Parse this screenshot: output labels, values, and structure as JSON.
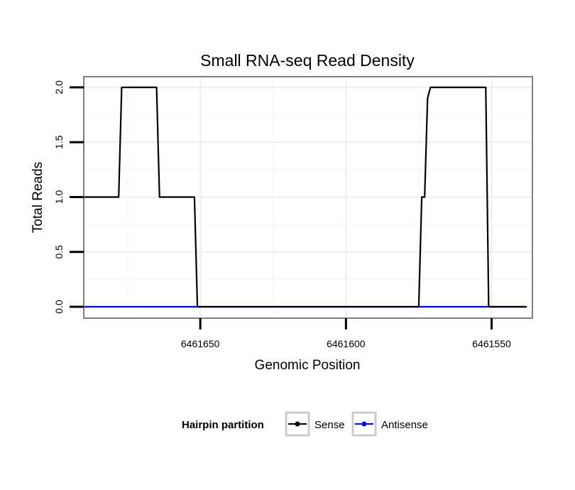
{
  "chart_data": {
    "type": "line",
    "title": "Small RNA-seq Read Density",
    "xlabel": "Genomic Position",
    "ylabel": "Total Reads",
    "x_reversed": true,
    "xlim": [
      6461690,
      6461536
    ],
    "ylim": [
      0,
      2.1
    ],
    "x_ticks": [
      6461650,
      6461600,
      6461550
    ],
    "x_tick_labels": [
      "6461650",
      "6461600",
      "6461550"
    ],
    "y_ticks": [
      0,
      0.5,
      1,
      1.5,
      2
    ],
    "y_tick_labels": [
      "0.0",
      "0.5",
      "1.0",
      "1.5",
      "2.0"
    ],
    "grid": true,
    "legend": {
      "title": "Hairpin partition",
      "placement": "bottom",
      "entries": [
        "Sense",
        "Antisense"
      ]
    },
    "series": [
      {
        "name": "Sense",
        "color": "#000000",
        "x": [
          6461690,
          6461678,
          6461677,
          6461665,
          6461664,
          6461652,
          6461651,
          6461575,
          6461574,
          6461573,
          6461572,
          6461571,
          6461552,
          6461551,
          6461538
        ],
        "y": [
          1,
          1,
          2,
          2,
          1,
          1,
          0,
          0,
          1,
          1,
          1.9,
          2,
          2,
          0,
          0
        ]
      },
      {
        "name": "Antisense",
        "color": "#0000ff",
        "x": [
          6461690,
          6461538
        ],
        "y": [
          0,
          0
        ]
      }
    ]
  }
}
